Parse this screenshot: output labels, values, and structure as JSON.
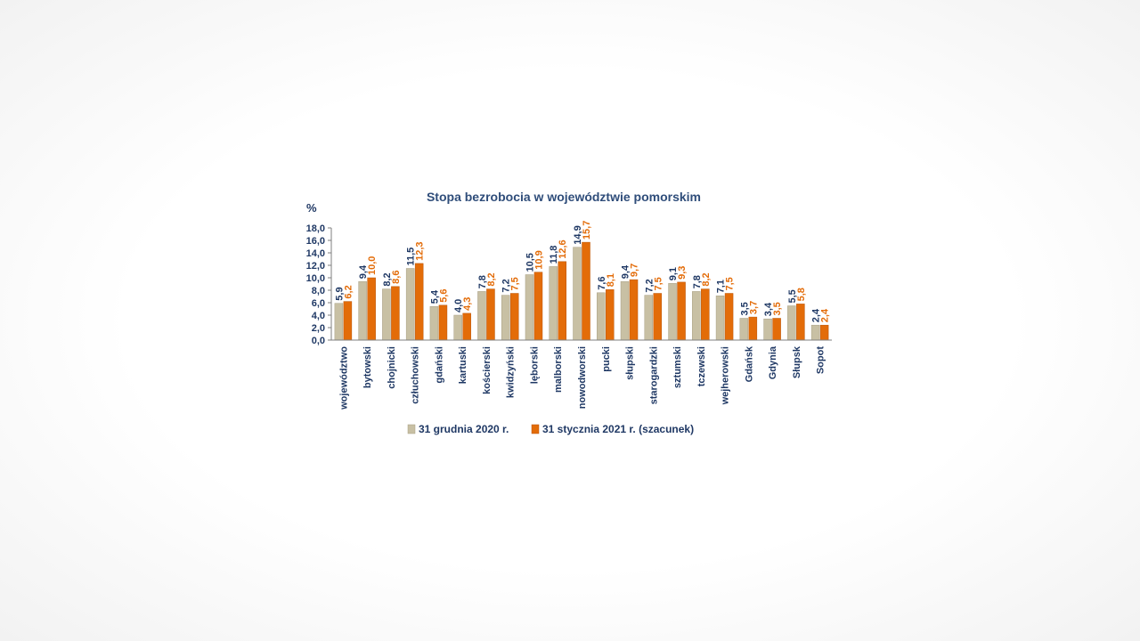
{
  "chart_data": {
    "type": "bar",
    "title": "Stopa bezrobocia w województwie pomorskim",
    "unit_label": "%",
    "categories": [
      "województwo",
      "bytowski",
      "chojnicki",
      "człuchowski",
      "gdański",
      "kartuski",
      "kościerski",
      "kwidzyński",
      "lęborski",
      "malborski",
      "nowodworski",
      "pucki",
      "słupski",
      "starogardzki",
      "sztumski",
      "tczewski",
      "wejherowski",
      "Gdańsk",
      "Gdynia",
      "Słupsk",
      "Sopot"
    ],
    "series": [
      {
        "name": "31 grudnia 2020 r.",
        "color": "#c8c0a4",
        "values": [
          5.9,
          9.4,
          8.2,
          11.5,
          5.4,
          4.0,
          7.8,
          7.2,
          10.5,
          11.8,
          14.9,
          7.6,
          9.4,
          7.2,
          9.1,
          7.8,
          7.1,
          3.5,
          3.4,
          5.5,
          2.4
        ],
        "labels": [
          "5,9",
          "9,4",
          "8,2",
          "11,5",
          "5,4",
          "4,0",
          "7,8",
          "7,2",
          "10,5",
          "11,8",
          "14,9",
          "7,6",
          "9,4",
          "7,2",
          "9,1",
          "7,8",
          "7,1",
          "3,5",
          "3,4",
          "5,5",
          "2,4"
        ]
      },
      {
        "name": "31 stycznia 2021 r. (szacunek)",
        "color": "#e36c09",
        "values": [
          6.2,
          10.0,
          8.6,
          12.3,
          5.6,
          4.3,
          8.2,
          7.5,
          10.9,
          12.6,
          15.7,
          8.1,
          9.7,
          7.5,
          9.3,
          8.2,
          7.5,
          3.7,
          3.5,
          5.8,
          2.4
        ],
        "labels": [
          "6,2",
          "10,0",
          "8,6",
          "12,3",
          "5,6",
          "4,3",
          "8,2",
          "7,5",
          "10,9",
          "12,6",
          "15,7",
          "8,1",
          "9,7",
          "7,5",
          "9,3",
          "8,2",
          "7,5",
          "3,7",
          "3,5",
          "5,8",
          "2,4"
        ]
      }
    ],
    "ylim": [
      0,
      18
    ],
    "yticks": [
      "0,0",
      "2,0",
      "4,0",
      "6,0",
      "8,0",
      "10,0",
      "12,0",
      "14,0",
      "16,0",
      "18,0"
    ],
    "grid": false,
    "legend": "bottom"
  }
}
